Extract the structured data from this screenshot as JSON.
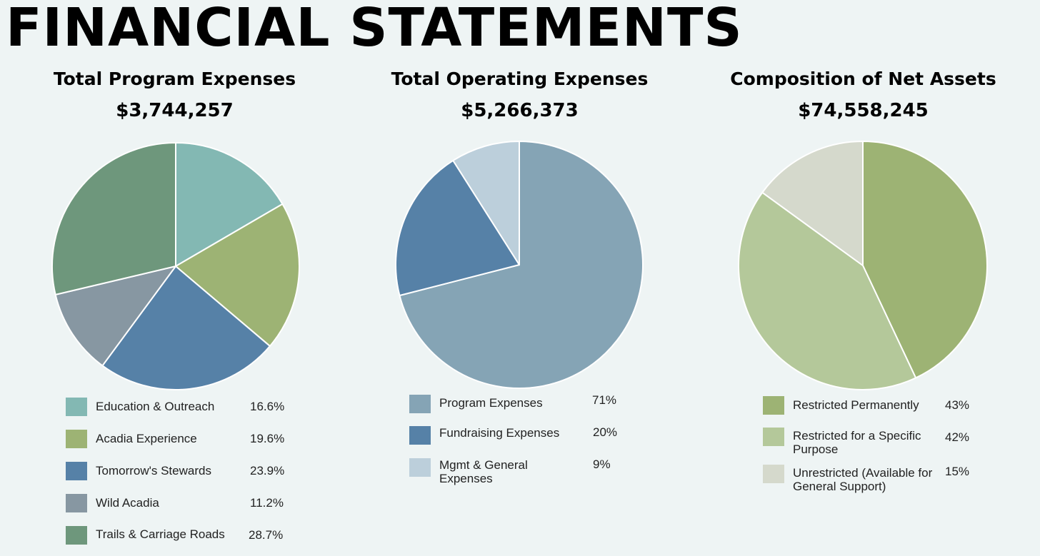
{
  "page": {
    "title": "FINANCIAL STATEMENTS"
  },
  "chart_data": [
    {
      "type": "pie",
      "title": "Total Program Expenses",
      "total": "$3,744,257",
      "labels": [
        "Education & Outreach",
        "Acadia Experience",
        "Tomorrow's Stewards",
        "Wild Acadia",
        "Trails & Carriage Roads"
      ],
      "values": [
        16.6,
        19.6,
        23.9,
        11.2,
        28.7
      ],
      "value_labels": [
        "16.6%",
        "19.6%",
        "23.9%",
        "11.2%",
        "28.7%"
      ],
      "colors": [
        "#83b8b3",
        "#9db374",
        "#5681a7",
        "#8797a2",
        "#6e977c"
      ]
    },
    {
      "type": "pie",
      "title": "Total Operating Expenses",
      "total": "$5,266,373",
      "labels": [
        "Program Expenses",
        "Fundraising Expenses",
        "Mgmt & General Expenses"
      ],
      "values": [
        71,
        20,
        9
      ],
      "value_labels": [
        "71%",
        "20%",
        "9%"
      ],
      "colors": [
        "#85a4b5",
        "#5681a7",
        "#bccfdb"
      ]
    },
    {
      "type": "pie",
      "title": "Composition of Net Assets",
      "total": "$74,558,245",
      "labels": [
        "Restricted Permanently",
        "Restricted for a Specific Purpose",
        "Unrestricted (Available for General Support)"
      ],
      "values": [
        43,
        42,
        15
      ],
      "value_labels": [
        "43%",
        "42%",
        "15%"
      ],
      "colors": [
        "#9db374",
        "#b4c89a",
        "#d5d9cc"
      ]
    }
  ]
}
